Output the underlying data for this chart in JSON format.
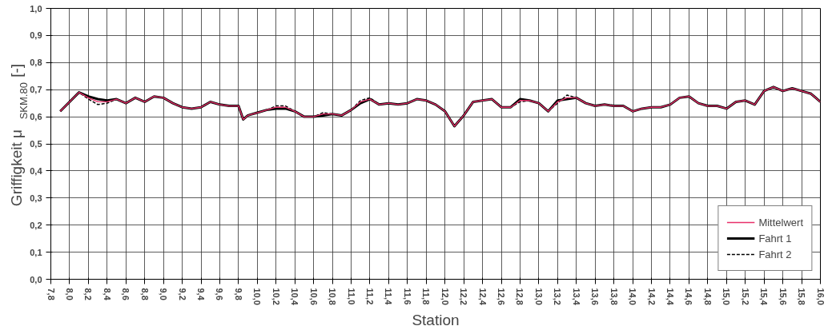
{
  "chart_data": {
    "type": "line",
    "xlabel": "Station",
    "ylabel": "Griffigkeit μ$_{SKM,80}$ [-]",
    "x": [
      7.9,
      8.1,
      8.2,
      8.3,
      8.4,
      8.5,
      8.6,
      8.7,
      8.8,
      8.9,
      9.0,
      9.1,
      9.2,
      9.3,
      9.4,
      9.5,
      9.6,
      9.7,
      9.8,
      9.85,
      9.9,
      10.0,
      10.1,
      10.2,
      10.3,
      10.4,
      10.5,
      10.6,
      10.7,
      10.8,
      10.9,
      11.0,
      11.1,
      11.2,
      11.3,
      11.4,
      11.5,
      11.6,
      11.7,
      11.8,
      11.9,
      12.0,
      12.1,
      12.2,
      12.3,
      12.4,
      12.5,
      12.6,
      12.7,
      12.8,
      12.9,
      13.0,
      13.1,
      13.2,
      13.3,
      13.4,
      13.5,
      13.6,
      13.7,
      13.8,
      13.9,
      14.0,
      14.1,
      14.2,
      14.3,
      14.4,
      14.5,
      14.6,
      14.7,
      14.8,
      14.9,
      15.0,
      15.1,
      15.2,
      15.3,
      15.4,
      15.5,
      15.6,
      15.7,
      15.8,
      15.9,
      16.0
    ],
    "series": [
      {
        "name": "Mittelwert",
        "color": "#e8306a",
        "line_style": "solid",
        "values": [
          0.62,
          0.69,
          0.67,
          0.655,
          0.655,
          0.665,
          0.65,
          0.67,
          0.655,
          0.675,
          0.67,
          0.65,
          0.635,
          0.63,
          0.635,
          0.655,
          0.645,
          0.64,
          0.64,
          0.59,
          0.605,
          0.615,
          0.625,
          0.635,
          0.635,
          0.62,
          0.6,
          0.6,
          0.61,
          0.61,
          0.605,
          0.625,
          0.655,
          0.665,
          0.645,
          0.65,
          0.645,
          0.65,
          0.665,
          0.66,
          0.645,
          0.62,
          0.565,
          0.605,
          0.655,
          0.66,
          0.665,
          0.635,
          0.635,
          0.66,
          0.66,
          0.65,
          0.62,
          0.655,
          0.67,
          0.67,
          0.65,
          0.64,
          0.645,
          0.64,
          0.64,
          0.62,
          0.63,
          0.635,
          0.635,
          0.645,
          0.67,
          0.675,
          0.65,
          0.64,
          0.64,
          0.63,
          0.655,
          0.66,
          0.645,
          0.695,
          0.71,
          0.695,
          0.705,
          0.695,
          0.685,
          0.655
        ]
      },
      {
        "name": "Fahrt 1",
        "color": "#000000",
        "line_style": "solid",
        "values": [
          0.62,
          0.69,
          0.675,
          0.665,
          0.66,
          0.665,
          0.65,
          0.67,
          0.655,
          0.675,
          0.67,
          0.65,
          0.635,
          0.63,
          0.635,
          0.655,
          0.645,
          0.64,
          0.64,
          0.59,
          0.605,
          0.615,
          0.625,
          0.63,
          0.63,
          0.62,
          0.6,
          0.6,
          0.605,
          0.61,
          0.605,
          0.625,
          0.65,
          0.665,
          0.645,
          0.65,
          0.645,
          0.65,
          0.665,
          0.66,
          0.645,
          0.62,
          0.565,
          0.605,
          0.655,
          0.66,
          0.665,
          0.635,
          0.635,
          0.665,
          0.66,
          0.65,
          0.62,
          0.66,
          0.665,
          0.67,
          0.65,
          0.64,
          0.645,
          0.64,
          0.64,
          0.62,
          0.63,
          0.635,
          0.635,
          0.645,
          0.67,
          0.675,
          0.65,
          0.64,
          0.64,
          0.63,
          0.655,
          0.66,
          0.645,
          0.695,
          0.71,
          0.695,
          0.705,
          0.695,
          0.685,
          0.655
        ]
      },
      {
        "name": "Fahrt 2",
        "color": "#000000",
        "line_style": "dashed",
        "values": [
          0.62,
          0.69,
          0.665,
          0.645,
          0.65,
          0.665,
          0.65,
          0.67,
          0.655,
          0.675,
          0.67,
          0.65,
          0.635,
          0.63,
          0.635,
          0.655,
          0.645,
          0.64,
          0.64,
          0.59,
          0.605,
          0.615,
          0.625,
          0.64,
          0.64,
          0.62,
          0.6,
          0.6,
          0.615,
          0.61,
          0.605,
          0.625,
          0.66,
          0.67,
          0.645,
          0.65,
          0.645,
          0.65,
          0.665,
          0.66,
          0.645,
          0.62,
          0.565,
          0.605,
          0.655,
          0.66,
          0.665,
          0.635,
          0.635,
          0.655,
          0.66,
          0.65,
          0.62,
          0.65,
          0.68,
          0.67,
          0.65,
          0.64,
          0.645,
          0.64,
          0.64,
          0.62,
          0.63,
          0.635,
          0.635,
          0.645,
          0.67,
          0.675,
          0.65,
          0.64,
          0.64,
          0.63,
          0.655,
          0.66,
          0.645,
          0.695,
          0.71,
          0.695,
          0.705,
          0.695,
          0.685,
          0.655
        ]
      }
    ],
    "xlim": [
      7.8,
      16.0
    ],
    "xticks": [
      {
        "value": 7.8,
        "label": "7,8"
      },
      {
        "value": 8.0,
        "label": "8,0"
      },
      {
        "value": 8.2,
        "label": "8,2"
      },
      {
        "value": 8.4,
        "label": "8,4"
      },
      {
        "value": 8.6,
        "label": "8,6"
      },
      {
        "value": 8.8,
        "label": "8,8"
      },
      {
        "value": 9.0,
        "label": "9,0"
      },
      {
        "value": 9.2,
        "label": "9,2"
      },
      {
        "value": 9.4,
        "label": "9,4"
      },
      {
        "value": 9.6,
        "label": "9,6"
      },
      {
        "value": 9.8,
        "label": "9,8"
      },
      {
        "value": 10.0,
        "label": "10,0"
      },
      {
        "value": 10.2,
        "label": "10,2"
      },
      {
        "value": 10.4,
        "label": "10,4"
      },
      {
        "value": 10.6,
        "label": "10,6"
      },
      {
        "value": 10.8,
        "label": "10,8"
      },
      {
        "value": 11.0,
        "label": "11,0"
      },
      {
        "value": 11.2,
        "label": "11,2"
      },
      {
        "value": 11.4,
        "label": "11,4"
      },
      {
        "value": 11.6,
        "label": "11,6"
      },
      {
        "value": 11.8,
        "label": "11,8"
      },
      {
        "value": 12.0,
        "label": "12,0"
      },
      {
        "value": 12.2,
        "label": "12,2"
      },
      {
        "value": 12.4,
        "label": "12,4"
      },
      {
        "value": 12.6,
        "label": "12,6"
      },
      {
        "value": 12.8,
        "label": "12,8"
      },
      {
        "value": 13.0,
        "label": "13,0"
      },
      {
        "value": 13.2,
        "label": "13,2"
      },
      {
        "value": 13.4,
        "label": "13,4"
      },
      {
        "value": 13.6,
        "label": "13,6"
      },
      {
        "value": 13.8,
        "label": "13,8"
      },
      {
        "value": 14.0,
        "label": "14,0"
      },
      {
        "value": 14.2,
        "label": "14,2"
      },
      {
        "value": 14.4,
        "label": "14,4"
      },
      {
        "value": 14.6,
        "label": "14,6"
      },
      {
        "value": 14.8,
        "label": "14,8"
      },
      {
        "value": 15.0,
        "label": "15,0"
      },
      {
        "value": 15.2,
        "label": "15,2"
      },
      {
        "value": 15.4,
        "label": "15,4"
      },
      {
        "value": 15.6,
        "label": "15,6"
      },
      {
        "value": 15.8,
        "label": "15,8"
      },
      {
        "value": 16.0,
        "label": "16,0"
      }
    ],
    "ylim": [
      0.0,
      1.0
    ],
    "yticks": [
      {
        "value": 0.0,
        "label": "0,0"
      },
      {
        "value": 0.1,
        "label": "0,1"
      },
      {
        "value": 0.2,
        "label": "0,2"
      },
      {
        "value": 0.3,
        "label": "0,3"
      },
      {
        "value": 0.4,
        "label": "0,4"
      },
      {
        "value": 0.5,
        "label": "0,5"
      },
      {
        "value": 0.6,
        "label": "0,6"
      },
      {
        "value": 0.7,
        "label": "0,7"
      },
      {
        "value": 0.8,
        "label": "0,8"
      },
      {
        "value": 0.9,
        "label": "0,9"
      },
      {
        "value": 1.0,
        "label": "1,0"
      }
    ],
    "grid": true,
    "legend": "bottom right"
  }
}
